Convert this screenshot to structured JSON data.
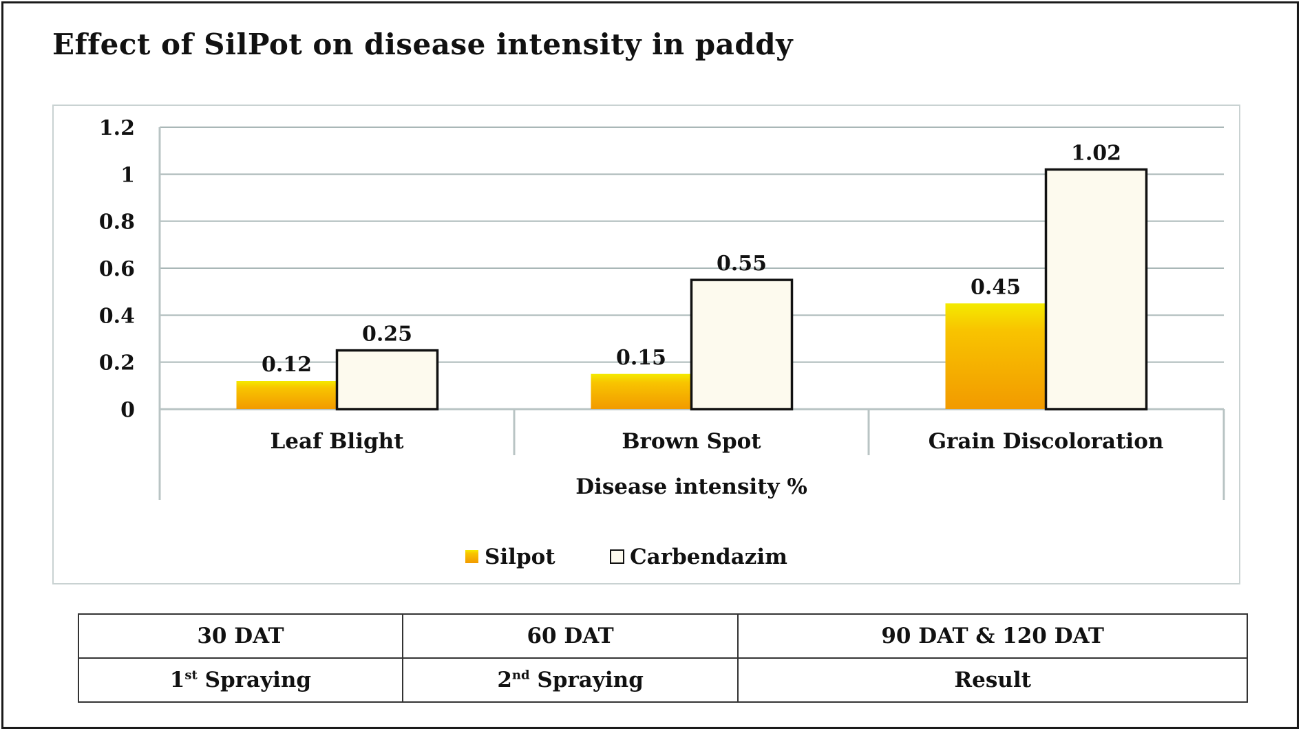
{
  "title": "Effect of SilPot on disease intensity in paddy",
  "chart_data": {
    "type": "bar",
    "title": "Effect of SilPot on disease intensity in paddy",
    "categories": [
      "Leaf Blight",
      "Brown Spot",
      "Grain Discoloration"
    ],
    "series": [
      {
        "name": "Silpot",
        "values": [
          0.12,
          0.15,
          0.45
        ],
        "color": "#f5a400"
      },
      {
        "name": "Carbendazim",
        "values": [
          0.25,
          0.55,
          1.02
        ],
        "color": "#fdfaee"
      }
    ],
    "data_labels": [
      [
        "0.12",
        "0.15",
        "0.45"
      ],
      [
        "0.25",
        "0.55",
        "1.02"
      ]
    ],
    "ylim": [
      0,
      1.2
    ],
    "yticks": [
      "0",
      "0.2",
      "0.4",
      "0.6",
      "0.8",
      "1",
      "1.2"
    ],
    "xlabel": "Disease intensity %",
    "ylabel": "",
    "grid": true,
    "legend_position": "bottom"
  },
  "phase_table": {
    "row1": [
      "30 DAT",
      "60 DAT",
      "90 DAT & 120 DAT"
    ],
    "row2": [
      {
        "prefix": "1",
        "sup": "st",
        "text": " Spraying"
      },
      {
        "prefix": "2",
        "sup": "nd",
        "text": " Spraying"
      },
      {
        "prefix": "",
        "sup": "",
        "text": "Result"
      }
    ]
  }
}
